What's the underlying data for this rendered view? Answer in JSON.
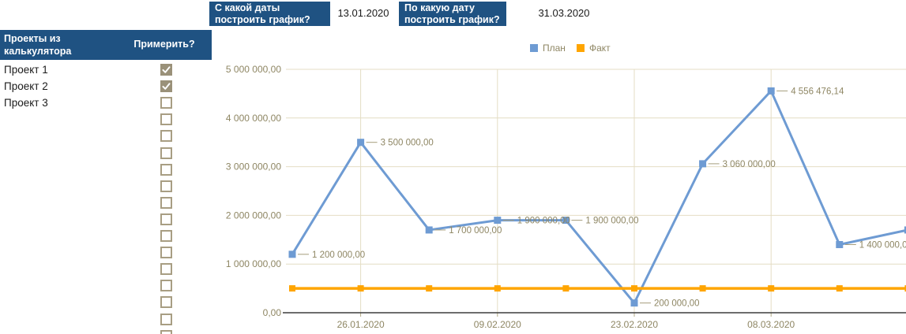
{
  "filters": {
    "from": {
      "label": "С какой даты построить график?",
      "value": "13.01.2020"
    },
    "to": {
      "label": "По какую дату построить график?",
      "value": "31.03.2020"
    }
  },
  "panel": {
    "header": {
      "title": "Проекты из калькулятора",
      "apply_column": "Примерить?"
    },
    "rows": [
      {
        "label": "Проект 1",
        "checked": true
      },
      {
        "label": "Проект 2",
        "checked": true
      },
      {
        "label": "Проект 3",
        "checked": false
      }
    ],
    "extra_empty_checkbox_rows": 14
  },
  "chart_data": {
    "type": "line",
    "title": "",
    "series": [
      {
        "name": "План",
        "color": "#6E9BD3",
        "values": [
          1200000,
          3500000,
          1700000,
          1900000,
          1900000,
          200000,
          3060000,
          4556476.14,
          1400000,
          1700000
        ],
        "point_labels": [
          "1 200 000,00",
          "3 500 000,00",
          "1 700 000,00",
          "1 900 000,00",
          "1 900 000,00",
          "200 000,00",
          "3 060 000,00",
          "4 556 476,14",
          "1 400 000,00",
          ""
        ]
      },
      {
        "name": "Факт",
        "color": "#FFA500",
        "values": [
          500000,
          500000,
          500000,
          500000,
          500000,
          500000,
          500000,
          500000,
          500000,
          500000
        ],
        "point_labels": [
          "",
          "",
          "",
          "",
          "",
          "",
          "",
          "",
          "",
          ""
        ]
      }
    ],
    "x_tick_labels": [
      "26.01.2020",
      "09.02.2020",
      "23.02.2020",
      "08.03.2020"
    ],
    "x_tick_indices": [
      1,
      3,
      5,
      7
    ],
    "x_grid_indices": [
      1,
      3,
      5,
      7,
      9
    ],
    "y_tick_labels": [
      "0,00",
      "1 000 000,00",
      "2 000 000,00",
      "3 000 000,00",
      "4 000 000,00",
      "5 000 000,00"
    ],
    "ylim": [
      0,
      5000000
    ],
    "grid": true,
    "legend_position": "top"
  },
  "colors": {
    "header_bg": "#1F5282",
    "header_text": "#FFFFFF",
    "plan": "#6E9BD3",
    "fact": "#FFA500",
    "chart_text": "#8E8663",
    "gridline": "#E4DDC4",
    "tick": "#B3AA87",
    "callout": "#A59D7C",
    "axis_line": "#3D3D3D",
    "checkbox_checked": "#9A9179",
    "checkbox_border": "#A89E83"
  }
}
